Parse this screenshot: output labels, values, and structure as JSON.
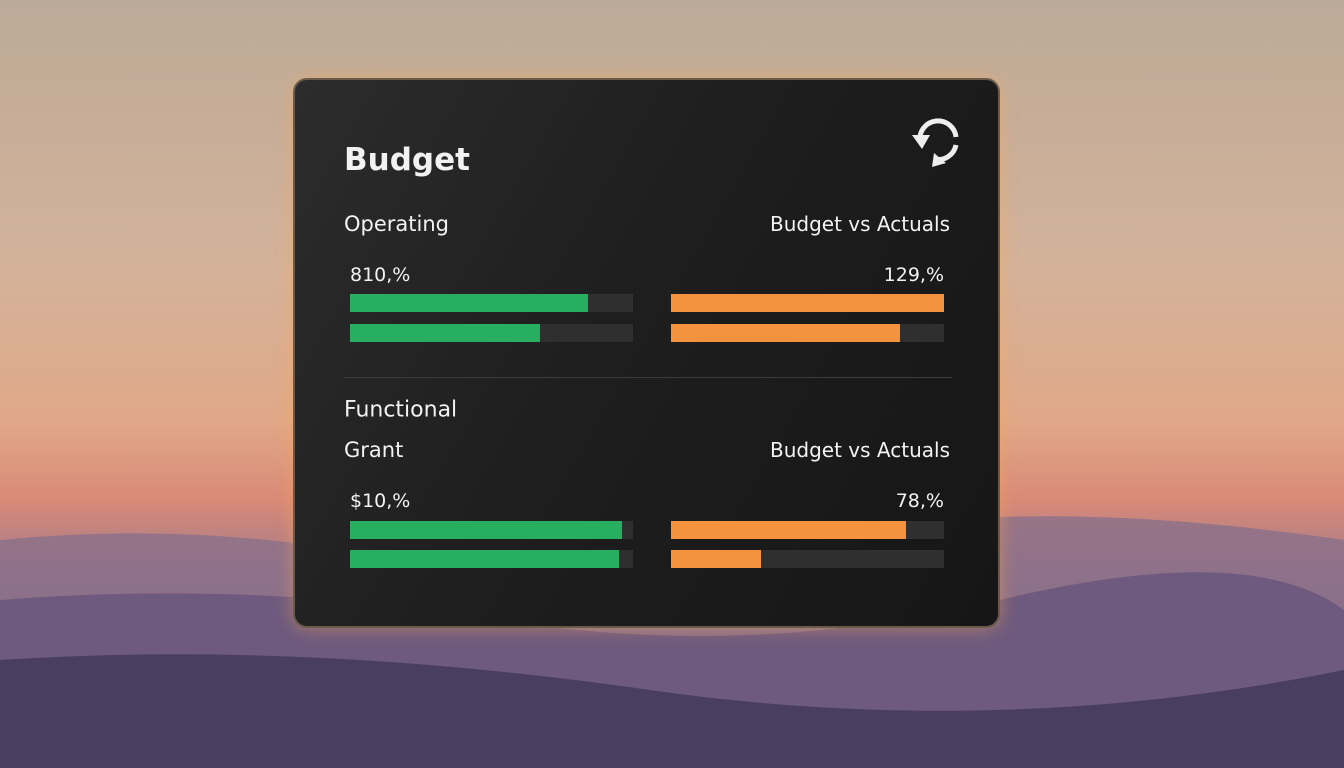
{
  "title": "Budget",
  "colors": {
    "left": "#27ae60",
    "right": "#f5923e"
  },
  "sections": [
    {
      "label": "Operating",
      "right_label": "Budget vs Actuals",
      "left_value_label": "810,%",
      "right_value_label": "129,%",
      "left_bars": [
        84,
        67
      ],
      "right_bars": [
        100,
        84
      ]
    },
    {
      "heading": "Functional",
      "label": "Grant",
      "right_label": "Budget vs Actuals",
      "left_value_label": "$10,%",
      "right_value_label": "78,%",
      "left_bars": [
        96,
        95
      ],
      "right_bars": [
        86,
        33
      ]
    }
  ]
}
